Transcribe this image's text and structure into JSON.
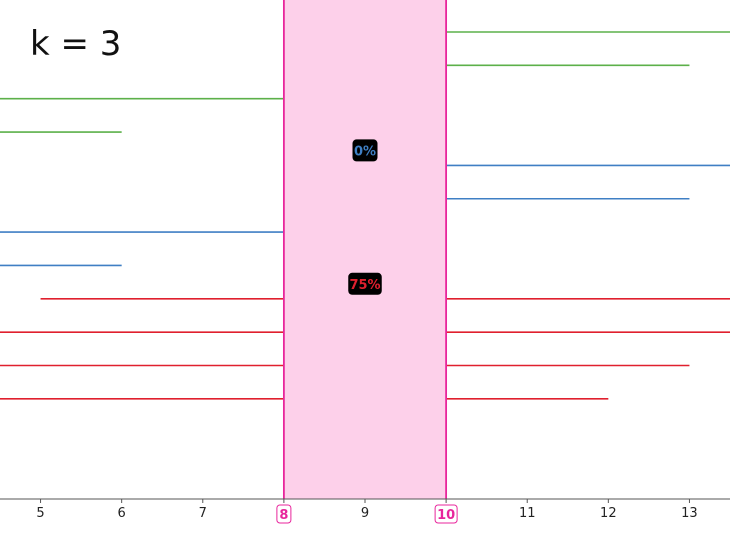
{
  "chart_data": {
    "type": "interval",
    "title": "k = 3",
    "xlim": [
      4.5,
      13.5
    ],
    "xticks": [
      5,
      6,
      7,
      8,
      9,
      10,
      11,
      12,
      13
    ],
    "highlight": {
      "start": 8,
      "end": 10,
      "color": "#e8259c",
      "fill": "#fdd0ea"
    },
    "groups": [
      {
        "color": "#5cb04a",
        "intervals": [
          {
            "start": 9,
            "end": 13.5
          },
          {
            "start": 9,
            "end": 13
          },
          {
            "start": 4.5,
            "end": 9
          },
          {
            "start": 4.5,
            "end": 6
          }
        ]
      },
      {
        "color": "#3f7fc4",
        "percent_label": "0%",
        "percent_at": 9,
        "intervals": [
          {
            "start": 9,
            "end": 13.5
          },
          {
            "start": 8,
            "end": 13
          },
          {
            "start": 4.5,
            "end": 9
          },
          {
            "start": 4.5,
            "end": 6
          }
        ]
      },
      {
        "color": "#e0202e",
        "percent_label": "75%",
        "percent_at": 9,
        "intervals": [
          {
            "start": 5,
            "end": 13.5
          },
          {
            "start": 4.5,
            "end": 13.5
          },
          {
            "start": 4.5,
            "end": 13
          },
          {
            "start": 4.5,
            "end": 12
          }
        ]
      }
    ]
  }
}
